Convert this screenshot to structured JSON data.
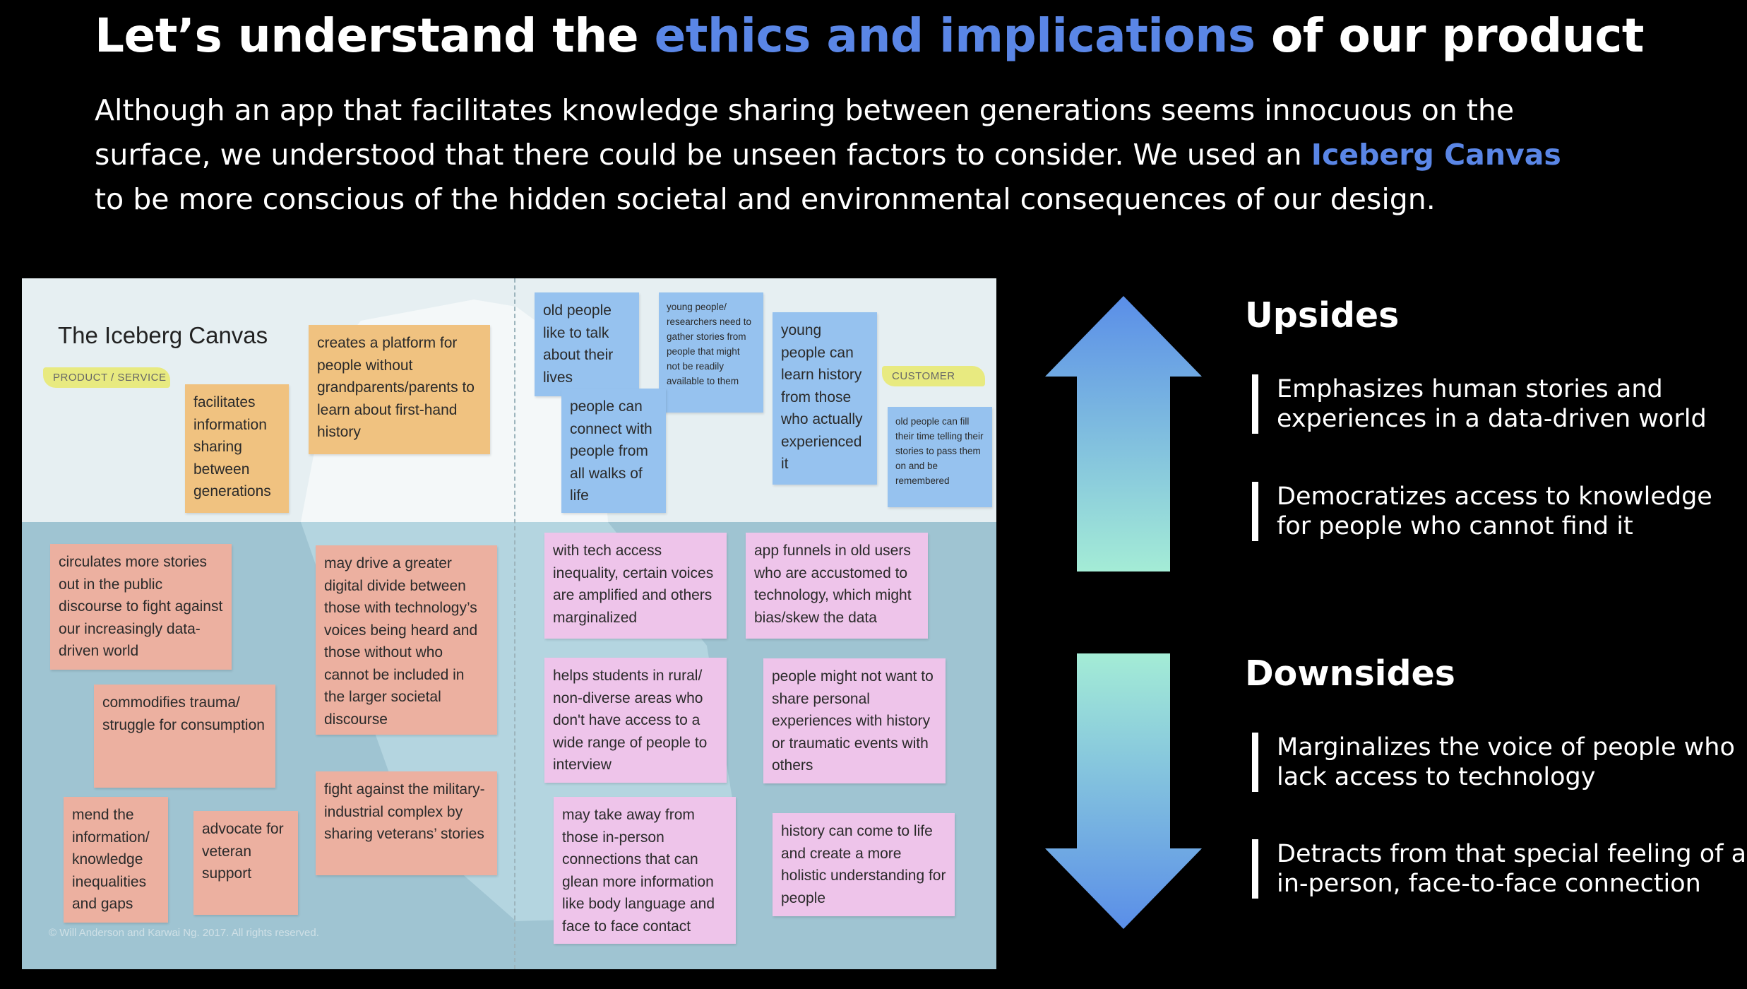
{
  "header": {
    "title_pre": "Let’s understand the ",
    "title_accent": "ethics and implications",
    "title_post": " of our product",
    "intro_line1": "Although an app that facilitates knowledge sharing between generations seems innocuous on the",
    "intro_line2_pre": "surface, we understood that there could be unseen factors to consider. We used an ",
    "intro_line2_accent": "Iceberg Canvas",
    "intro_line3": "to be more conscious of the hidden societal and environmental consequences of our design."
  },
  "canvas": {
    "title": "The Iceberg Canvas",
    "tag_product": "PRODUCT / SERVICE",
    "tag_customer": "CUSTOMER",
    "copyright": "© Will Anderson and Karwai Ng. 2017. All rights reserved.",
    "notes_above_left": [
      "facilitates information sharing between generations",
      "creates a platform for people without grandparents/parents to learn about first-hand history"
    ],
    "notes_above_right": [
      "old people like to talk about their lives",
      "young people/ researchers need to gather stories from people that might not be readily available to them",
      "people can connect with people from all walks of life",
      "young people can learn history from those who actually experienced it",
      "old people can fill their time telling their stories to pass them on and be remembered"
    ],
    "notes_below_left": [
      "circulates more stories out in the public discourse to fight against our increasingly data-driven world",
      "may drive a greater digital divide between those with technology’s voices being heard and those without who cannot be included in the larger societal discourse",
      "commodifies trauma/ struggle for consumption",
      "mend the information/ knowledge inequalities and gaps",
      "advocate for veteran support",
      "fight against the military-industrial complex by sharing veterans’ stories"
    ],
    "notes_below_right": [
      "with tech access inequality, certain voices are amplified and others marginalized",
      "app funnels in old users who are accustomed to technology, which might bias/skew the data",
      "helps students in rural/ non-diverse areas who don't have access to a wide range of people to interview",
      "people might not want to share personal experiences with history or traumatic events with others",
      "may take away from those in-person connections that can glean more information like body language and face to face contact",
      "history can come to life and create a more holistic understanding for people"
    ],
    "colors": {
      "above_left": "#f0c280",
      "above_right": "#96c2ef",
      "below_left": "#ecb0a0",
      "below_right": "#eec4ea"
    }
  },
  "upsides": {
    "heading": "Upsides",
    "points": [
      {
        "line1": "Emphasizes human stories and",
        "line2": "experiences in a data-driven world"
      },
      {
        "line1": "Democratizes access to knowledge",
        "line2": "for people who cannot find it"
      }
    ]
  },
  "downsides": {
    "heading": "Downsides",
    "points": [
      {
        "line1": "Marginalizes the voice of people who",
        "line2": "lack access to technology"
      },
      {
        "line1": "Detracts from that special feeling of an",
        "line2": "in-person, face-to-face connection"
      }
    ]
  },
  "colors": {
    "accent": "#5a86e6",
    "arrow_blue": "#5a8ee8",
    "arrow_mint": "#a4ecd6"
  },
  "icons": {
    "upsides": "arrow-up-icon",
    "downsides": "arrow-down-icon"
  }
}
